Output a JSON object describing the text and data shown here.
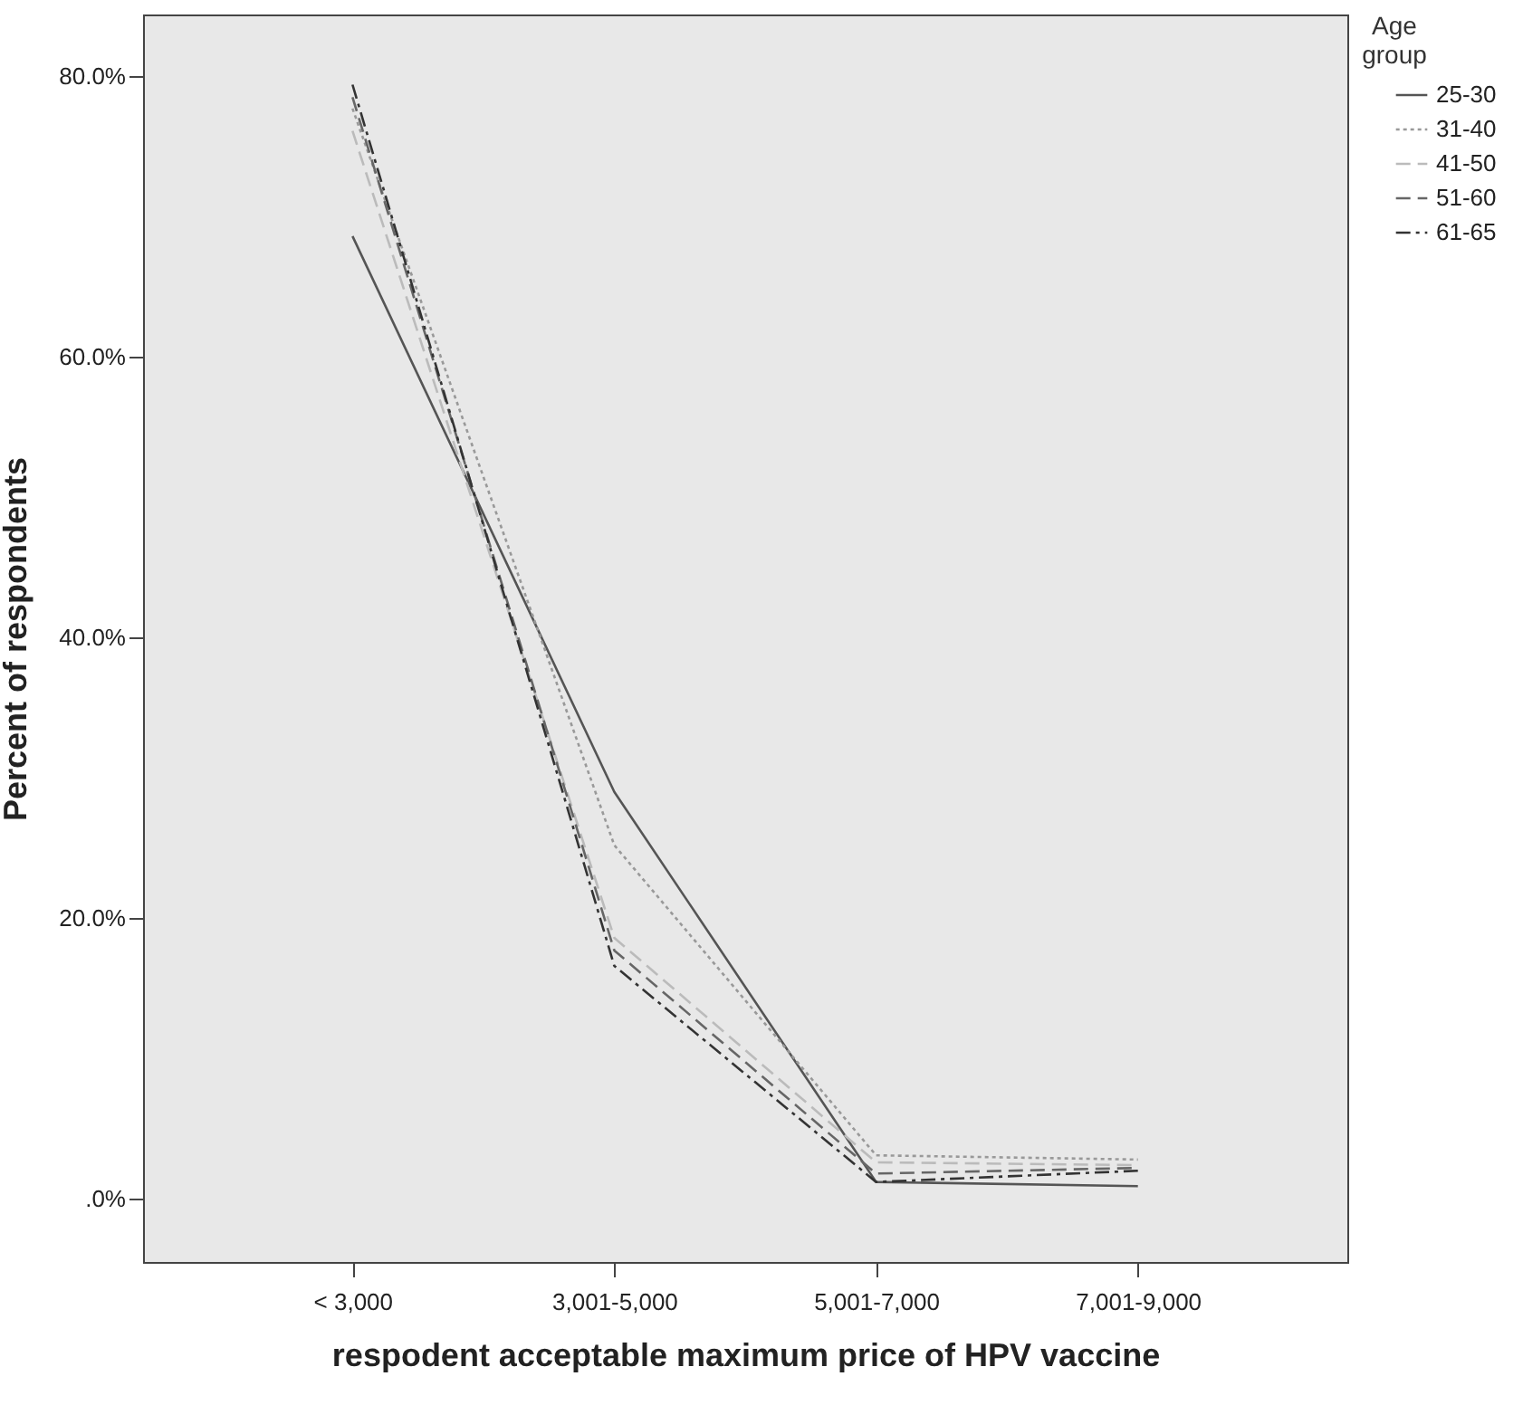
{
  "chart_data": {
    "type": "line",
    "xlabel": "respodent acceptable maximum price of HPV vaccine",
    "ylabel": "Percent of respondents",
    "legend_title": "Age group",
    "categories": [
      "< 3,000",
      "3,001-5,000",
      "5,001-7,000",
      "7,001-9,000"
    ],
    "series": [
      {
        "name": "25-30",
        "color": "#555555",
        "line_style": "solid",
        "values": [
          68.6,
          29.0,
          1.2,
          0.9
        ]
      },
      {
        "name": "31-40",
        "color": "#999999",
        "line_style": "dotted",
        "values": [
          77.7,
          25.2,
          3.1,
          2.8
        ]
      },
      {
        "name": "41-50",
        "color": "#bbbbbb",
        "line_style": "dashed",
        "values": [
          76.1,
          18.6,
          2.6,
          2.4
        ]
      },
      {
        "name": "51-60",
        "color": "#666666",
        "line_style": "dashed",
        "values": [
          78.5,
          17.7,
          1.8,
          2.2
        ]
      },
      {
        "name": "61-65",
        "color": "#333333",
        "line_style": "dashdot",
        "values": [
          79.4,
          16.6,
          1.2,
          2.0
        ]
      }
    ],
    "ylim": [
      -4.5,
      84.4
    ],
    "yticks": [
      {
        "value": 0,
        "label": ".0%"
      },
      {
        "value": 20,
        "label": "20.0%"
      },
      {
        "value": 40,
        "label": "40.0%"
      },
      {
        "value": 60,
        "label": "60.0%"
      },
      {
        "value": 80,
        "label": "80.0%"
      }
    ],
    "grid": false,
    "legend": "right",
    "marker": "none"
  }
}
